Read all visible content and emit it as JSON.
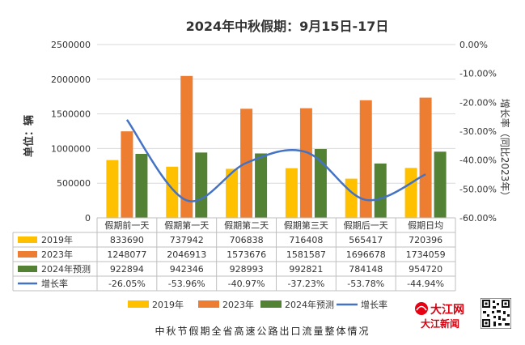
{
  "chart_data": {
    "type": "bar",
    "title": "2024年中秋假期：9月15日-17日",
    "ylabel": "单位：辆",
    "y2label": "增长率（同比2023年）",
    "ylim": [
      0,
      2500000
    ],
    "yticks": [
      "0",
      "500000",
      "1000000",
      "1500000",
      "2000000",
      "2500000"
    ],
    "y2lim": [
      -60,
      0
    ],
    "y2ticks": [
      "0.00%",
      "-10.00%",
      "-20.00%",
      "-30.00%",
      "-40.00%",
      "-50.00%",
      "-60.00%"
    ],
    "categories": [
      "假期前一天",
      "假期第一天",
      "假期第二天",
      "假期第三天",
      "假期后一天",
      "假期日均"
    ],
    "series": [
      {
        "name": "2019年",
        "color": "#FFC000",
        "values": [
          833690,
          737942,
          706838,
          716408,
          565417,
          720396
        ],
        "labels": [
          "833690",
          "737942",
          "706838",
          "716408",
          "565417",
          "720396"
        ]
      },
      {
        "name": "2023年",
        "color": "#ED7D31",
        "values": [
          1248077,
          2046913,
          1573676,
          1581587,
          1696678,
          1734059
        ],
        "labels": [
          "1248077",
          "2046913",
          "1573676",
          "1581587",
          "1696678",
          "1734059"
        ]
      },
      {
        "name": "2024年预测",
        "color": "#548235",
        "values": [
          922894,
          942346,
          928993,
          992821,
          784148,
          954720
        ],
        "labels": [
          "922894",
          "942346",
          "928993",
          "992821",
          "784148",
          "954720"
        ]
      }
    ],
    "line": {
      "name": "增长率",
      "color": "#4472C4",
      "values": [
        -26.05,
        -53.96,
        -40.97,
        -37.23,
        -53.78,
        -44.94
      ],
      "labels": [
        "-26.05%",
        "-53.96%",
        "-40.97%",
        "-37.23%",
        "-53.78%",
        "-44.94%"
      ]
    },
    "legend": [
      "2019年",
      "2023年",
      "2024年预测",
      "增长率"
    ],
    "legend_position": "bottom"
  },
  "caption": "中秋节假期全省高速公路出口流量整体情况",
  "logo": {
    "text1": "大江网",
    "text2": "大江新闻"
  }
}
